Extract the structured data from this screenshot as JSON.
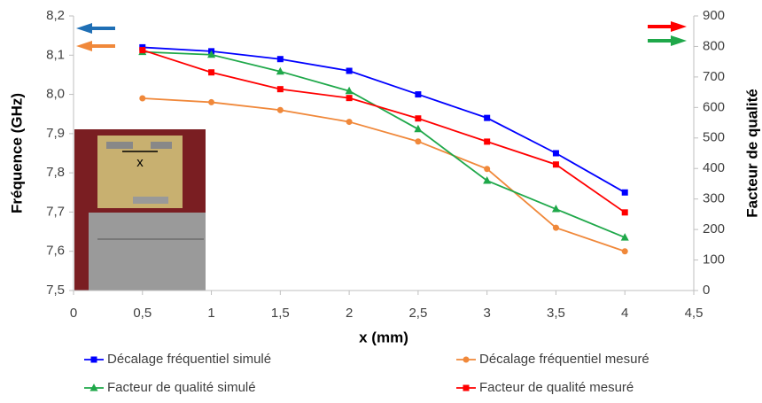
{
  "chart_data": {
    "type": "line",
    "x_label": "x (mm)",
    "y_label": "Fréquence (GHz)",
    "y2_label": "Facteur de qualité",
    "annotations": [
      "x"
    ],
    "xlim": [
      0,
      4.5
    ],
    "xticks": [
      0,
      {
        "value": 0.5,
        "label": "0,5"
      },
      1,
      {
        "value": 1.5,
        "label": "1,5"
      },
      2,
      {
        "value": 2.5,
        "label": "2,5"
      },
      3,
      {
        "value": 3.5,
        "label": "3,5"
      },
      4,
      {
        "value": 4.5,
        "label": "4,5"
      }
    ],
    "ylim": [
      7.5,
      8.2
    ],
    "yticks": [
      {
        "value": 7.5,
        "label": "7,5"
      },
      {
        "value": 7.6,
        "label": "7,6"
      },
      {
        "value": 7.7,
        "label": "7,7"
      },
      {
        "value": 7.8,
        "label": "7,8"
      },
      {
        "value": 7.9,
        "label": "7,9"
      },
      {
        "value": 8.0,
        "label": "8,0"
      },
      {
        "value": 8.1,
        "label": "8,1"
      },
      {
        "value": 8.2,
        "label": "8,2"
      }
    ],
    "y2lim": [
      0,
      900
    ],
    "y2ticks": [
      0,
      100,
      200,
      300,
      400,
      500,
      600,
      700,
      800,
      900
    ],
    "x": [
      0.5,
      1,
      1.5,
      2,
      2.5,
      3,
      3.5,
      4
    ],
    "series": [
      {
        "name": "Décalage fréquentiel simulé",
        "color": "#0000ff",
        "marker": "square",
        "values": [
          8.12,
          8.11,
          8.09,
          8.06,
          8.0,
          7.94,
          7.85,
          7.75
        ]
      },
      {
        "name": "Décalage fréquentiel mesuré",
        "color": "#f0883a",
        "marker": "circle",
        "values": [
          7.99,
          7.98,
          7.96,
          7.93,
          7.88,
          7.81,
          7.66,
          7.6
        ]
      },
      {
        "name": "Facteur de qualité simulé",
        "color": "#1fa84a",
        "marker": "triangle",
        "axis": "y2",
        "values": [
          782,
          773,
          718,
          654,
          529,
          360,
          267,
          174
        ]
      },
      {
        "name": "Facteur de qualité mesuré",
        "color": "#ff0000",
        "marker": "square",
        "axis": "y2",
        "values": [
          788,
          715,
          660,
          631,
          564,
          488,
          413,
          256
        ]
      }
    ]
  }
}
